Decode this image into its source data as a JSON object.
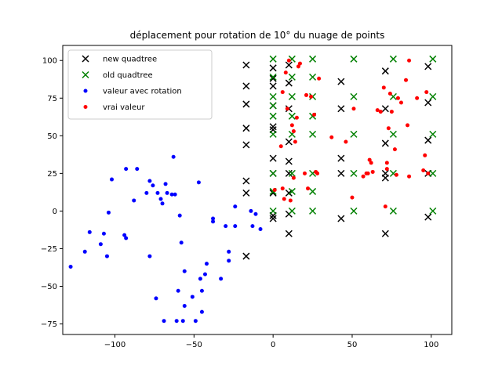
{
  "chart_data": {
    "type": "scatter",
    "title": "déplacement pour rotation de 10° du nuage de points",
    "xlabel": "",
    "ylabel": "",
    "xlim": [
      -133,
      113
    ],
    "ylim": [
      -82,
      110
    ],
    "xticks": [
      -100,
      -50,
      0,
      50,
      100
    ],
    "yticks": [
      -75,
      -50,
      -25,
      0,
      25,
      50,
      75,
      100
    ],
    "grid": false,
    "legend_position": "top-left",
    "series": [
      {
        "name": "new quadtree",
        "marker": "x",
        "color": "#000000",
        "points": [
          [
            -17,
            97
          ],
          [
            -17,
            83
          ],
          [
            -17,
            71
          ],
          [
            -17,
            55
          ],
          [
            -17,
            44
          ],
          [
            -17,
            20
          ],
          [
            -17,
            12
          ],
          [
            -17,
            -30
          ],
          [
            0,
            95
          ],
          [
            0,
            88
          ],
          [
            0,
            83
          ],
          [
            0,
            70
          ],
          [
            0,
            56
          ],
          [
            0,
            54
          ],
          [
            0,
            35
          ],
          [
            0,
            25
          ],
          [
            0,
            12
          ],
          [
            0,
            -3
          ],
          [
            0,
            -5
          ],
          [
            10,
            97
          ],
          [
            10,
            85
          ],
          [
            10,
            68
          ],
          [
            10,
            46
          ],
          [
            10,
            33
          ],
          [
            10,
            25
          ],
          [
            10,
            12
          ],
          [
            10,
            -2
          ],
          [
            10,
            -15
          ],
          [
            43,
            86
          ],
          [
            43,
            68
          ],
          [
            43,
            35
          ],
          [
            43,
            25
          ],
          [
            43,
            -5
          ],
          [
            71,
            93
          ],
          [
            71,
            68
          ],
          [
            71,
            45
          ],
          [
            71,
            25
          ],
          [
            71,
            22
          ],
          [
            71,
            -15
          ],
          [
            98,
            96
          ],
          [
            98,
            72
          ],
          [
            98,
            47
          ],
          [
            98,
            25
          ],
          [
            98,
            -4
          ]
        ]
      },
      {
        "name": "old quadtree",
        "marker": "x",
        "color": "#008000",
        "points": [
          [
            0,
            101
          ],
          [
            0,
            89
          ],
          [
            0,
            76
          ],
          [
            0,
            70
          ],
          [
            0,
            63
          ],
          [
            0,
            51
          ],
          [
            0,
            25
          ],
          [
            0,
            13
          ],
          [
            0,
            0
          ],
          [
            12,
            101
          ],
          [
            12,
            89
          ],
          [
            12,
            76
          ],
          [
            12,
            63
          ],
          [
            12,
            51
          ],
          [
            12,
            25
          ],
          [
            12,
            13
          ],
          [
            12,
            0
          ],
          [
            25,
            101
          ],
          [
            25,
            89
          ],
          [
            25,
            76
          ],
          [
            25,
            63
          ],
          [
            25,
            51
          ],
          [
            25,
            25
          ],
          [
            25,
            13
          ],
          [
            25,
            0
          ],
          [
            51,
            101
          ],
          [
            51,
            76
          ],
          [
            51,
            51
          ],
          [
            51,
            25
          ],
          [
            51,
            0
          ],
          [
            76,
            101
          ],
          [
            76,
            76
          ],
          [
            76,
            51
          ],
          [
            76,
            25
          ],
          [
            76,
            0
          ],
          [
            101,
            101
          ],
          [
            101,
            76
          ],
          [
            101,
            51
          ],
          [
            101,
            25
          ],
          [
            101,
            0
          ]
        ]
      },
      {
        "name": "valeur avec rotation",
        "marker": "o",
        "color": "#0000ff",
        "points": [
          [
            -128,
            -37
          ],
          [
            -119,
            -27
          ],
          [
            -116,
            -14
          ],
          [
            -109,
            -22
          ],
          [
            -107,
            -15
          ],
          [
            -105,
            -30
          ],
          [
            -104,
            -1
          ],
          [
            -102,
            21
          ],
          [
            -94,
            -16
          ],
          [
            -93,
            -18
          ],
          [
            -93,
            28
          ],
          [
            -88,
            7
          ],
          [
            -86,
            28
          ],
          [
            -80,
            12
          ],
          [
            -78,
            -30
          ],
          [
            -78,
            20
          ],
          [
            -76,
            17
          ],
          [
            -74,
            -58
          ],
          [
            -73,
            12
          ],
          [
            -71,
            8
          ],
          [
            -70,
            5
          ],
          [
            -69,
            -73
          ],
          [
            -68,
            18
          ],
          [
            -67,
            12
          ],
          [
            -64,
            11
          ],
          [
            -63,
            36
          ],
          [
            -62,
            11
          ],
          [
            -61,
            -73
          ],
          [
            -60,
            -53
          ],
          [
            -59,
            -3
          ],
          [
            -58,
            -21
          ],
          [
            -57,
            -73
          ],
          [
            -56,
            -63
          ],
          [
            -56,
            -40
          ],
          [
            -51,
            -57
          ],
          [
            -49,
            -73
          ],
          [
            -47,
            19
          ],
          [
            -46,
            -45
          ],
          [
            -45,
            -67
          ],
          [
            -45,
            -53
          ],
          [
            -43,
            -42
          ],
          [
            -42,
            -35
          ],
          [
            -38,
            -5
          ],
          [
            -38,
            -7
          ],
          [
            -33,
            -45
          ],
          [
            -30,
            -10
          ],
          [
            -28,
            -27
          ],
          [
            -28,
            -33
          ],
          [
            -24,
            3
          ],
          [
            -24,
            -10
          ],
          [
            -14,
            0
          ],
          [
            -13,
            -10
          ],
          [
            -11,
            -2
          ],
          [
            -8,
            -12
          ]
        ]
      },
      {
        "name": "vrai valeur",
        "marker": "o",
        "color": "#ff0000",
        "points": [
          [
            1,
            14
          ],
          [
            5,
            43
          ],
          [
            6,
            79
          ],
          [
            6,
            15
          ],
          [
            7,
            8
          ],
          [
            8,
            92
          ],
          [
            9,
            68
          ],
          [
            10,
            100
          ],
          [
            11,
            7
          ],
          [
            12,
            57
          ],
          [
            13,
            53
          ],
          [
            13,
            22
          ],
          [
            14,
            46
          ],
          [
            15,
            62
          ],
          [
            16,
            96
          ],
          [
            17,
            98
          ],
          [
            20,
            25
          ],
          [
            21,
            77
          ],
          [
            22,
            15
          ],
          [
            24,
            76
          ],
          [
            26,
            64
          ],
          [
            27,
            26
          ],
          [
            28,
            25
          ],
          [
            29,
            88
          ],
          [
            37,
            49
          ],
          [
            46,
            46
          ],
          [
            50,
            9
          ],
          [
            51,
            68
          ],
          [
            57,
            23
          ],
          [
            59,
            25
          ],
          [
            60,
            25
          ],
          [
            61,
            34
          ],
          [
            62,
            32
          ],
          [
            63,
            26
          ],
          [
            66,
            67
          ],
          [
            68,
            66
          ],
          [
            70,
            82
          ],
          [
            71,
            3
          ],
          [
            72,
            32
          ],
          [
            72,
            28
          ],
          [
            73,
            55
          ],
          [
            74,
            78
          ],
          [
            75,
            66
          ],
          [
            77,
            41
          ],
          [
            78,
            24
          ],
          [
            79,
            75
          ],
          [
            81,
            72
          ],
          [
            84,
            87
          ],
          [
            85,
            57
          ],
          [
            86,
            100
          ],
          [
            86,
            23
          ],
          [
            91,
            75
          ],
          [
            95,
            27
          ],
          [
            96,
            37
          ],
          [
            97,
            79
          ],
          [
            98,
            25
          ]
        ]
      }
    ]
  }
}
